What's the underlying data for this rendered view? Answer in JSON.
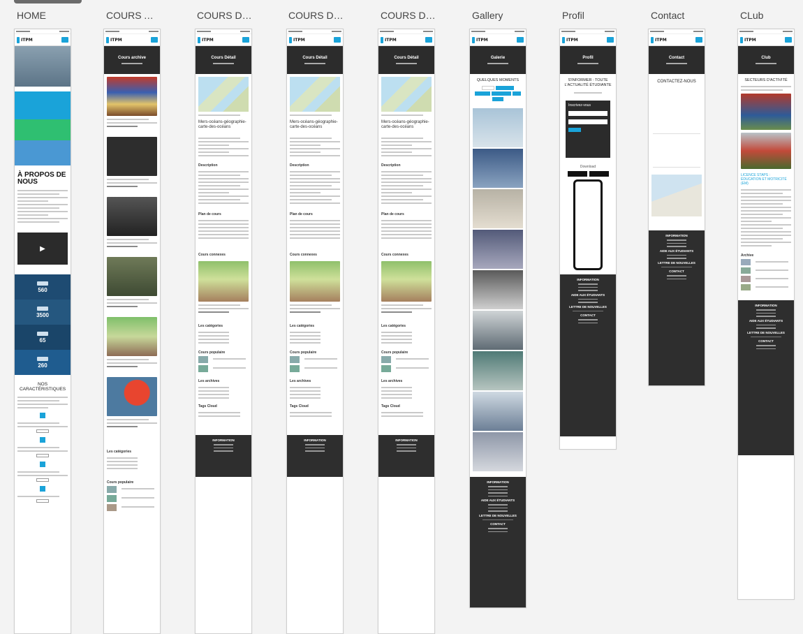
{
  "screens": [
    {
      "label": "HOME",
      "title": "",
      "banner": ""
    },
    {
      "label": "COURS ARCHIVE",
      "title": "Cours archive"
    },
    {
      "label": "COURS DETAIL",
      "title": "Cours Détail"
    },
    {
      "label": "COURS DETAIL",
      "title": "Cours Détail"
    },
    {
      "label": "COURS DETAIL",
      "title": "Cours Détail"
    },
    {
      "label": "Gallery",
      "title": "Galerie"
    },
    {
      "label": "Profil",
      "title": "Profil"
    },
    {
      "label": "Contact",
      "title": "Contact"
    },
    {
      "label": "CLub",
      "title": "Club"
    }
  ],
  "brand": "ITPM",
  "home": {
    "about": "À PROPOS DE NOUS",
    "features": "NOS CARACTÉRISTIQUES",
    "stats": [
      "560",
      "3500",
      "65",
      "260"
    ]
  },
  "detail": {
    "course_title": "Mers-océans-géographie-carte-des-océans",
    "description": "Description",
    "plan": "Plan de cours",
    "related": "Cours connexes",
    "categories": "Les catégories",
    "popular": "Cours populaire",
    "archives": "Les archives",
    "tags": "Tags Cloud"
  },
  "gallery": {
    "heading": "QUELQUES MOMENTS"
  },
  "profil": {
    "heading": "S'INFORMER : TOUTE L'ACTUALITÉ ÉTUDIANTE",
    "form": "Inscrivez-vous",
    "download": "Download"
  },
  "contact": {
    "heading": "CONTACTEZ-NOUS"
  },
  "club": {
    "heading": "SECTEURS D'ACTIVITÉ",
    "sub": "LICENCE STAPS : ÉDUCATION ET MOTRICITÉ (EM)",
    "archive": "Archive"
  },
  "footer": {
    "info": "INFORMATION",
    "students": "AIDE AUX ÉTUDIANTS",
    "newsletter": "LETTRE DE NOUVELLES",
    "contact": "CONTACT"
  },
  "colors": {
    "accent": "#1aa3d9",
    "dark": "#2c2c2c",
    "stat_bg": "#1e4b72"
  }
}
